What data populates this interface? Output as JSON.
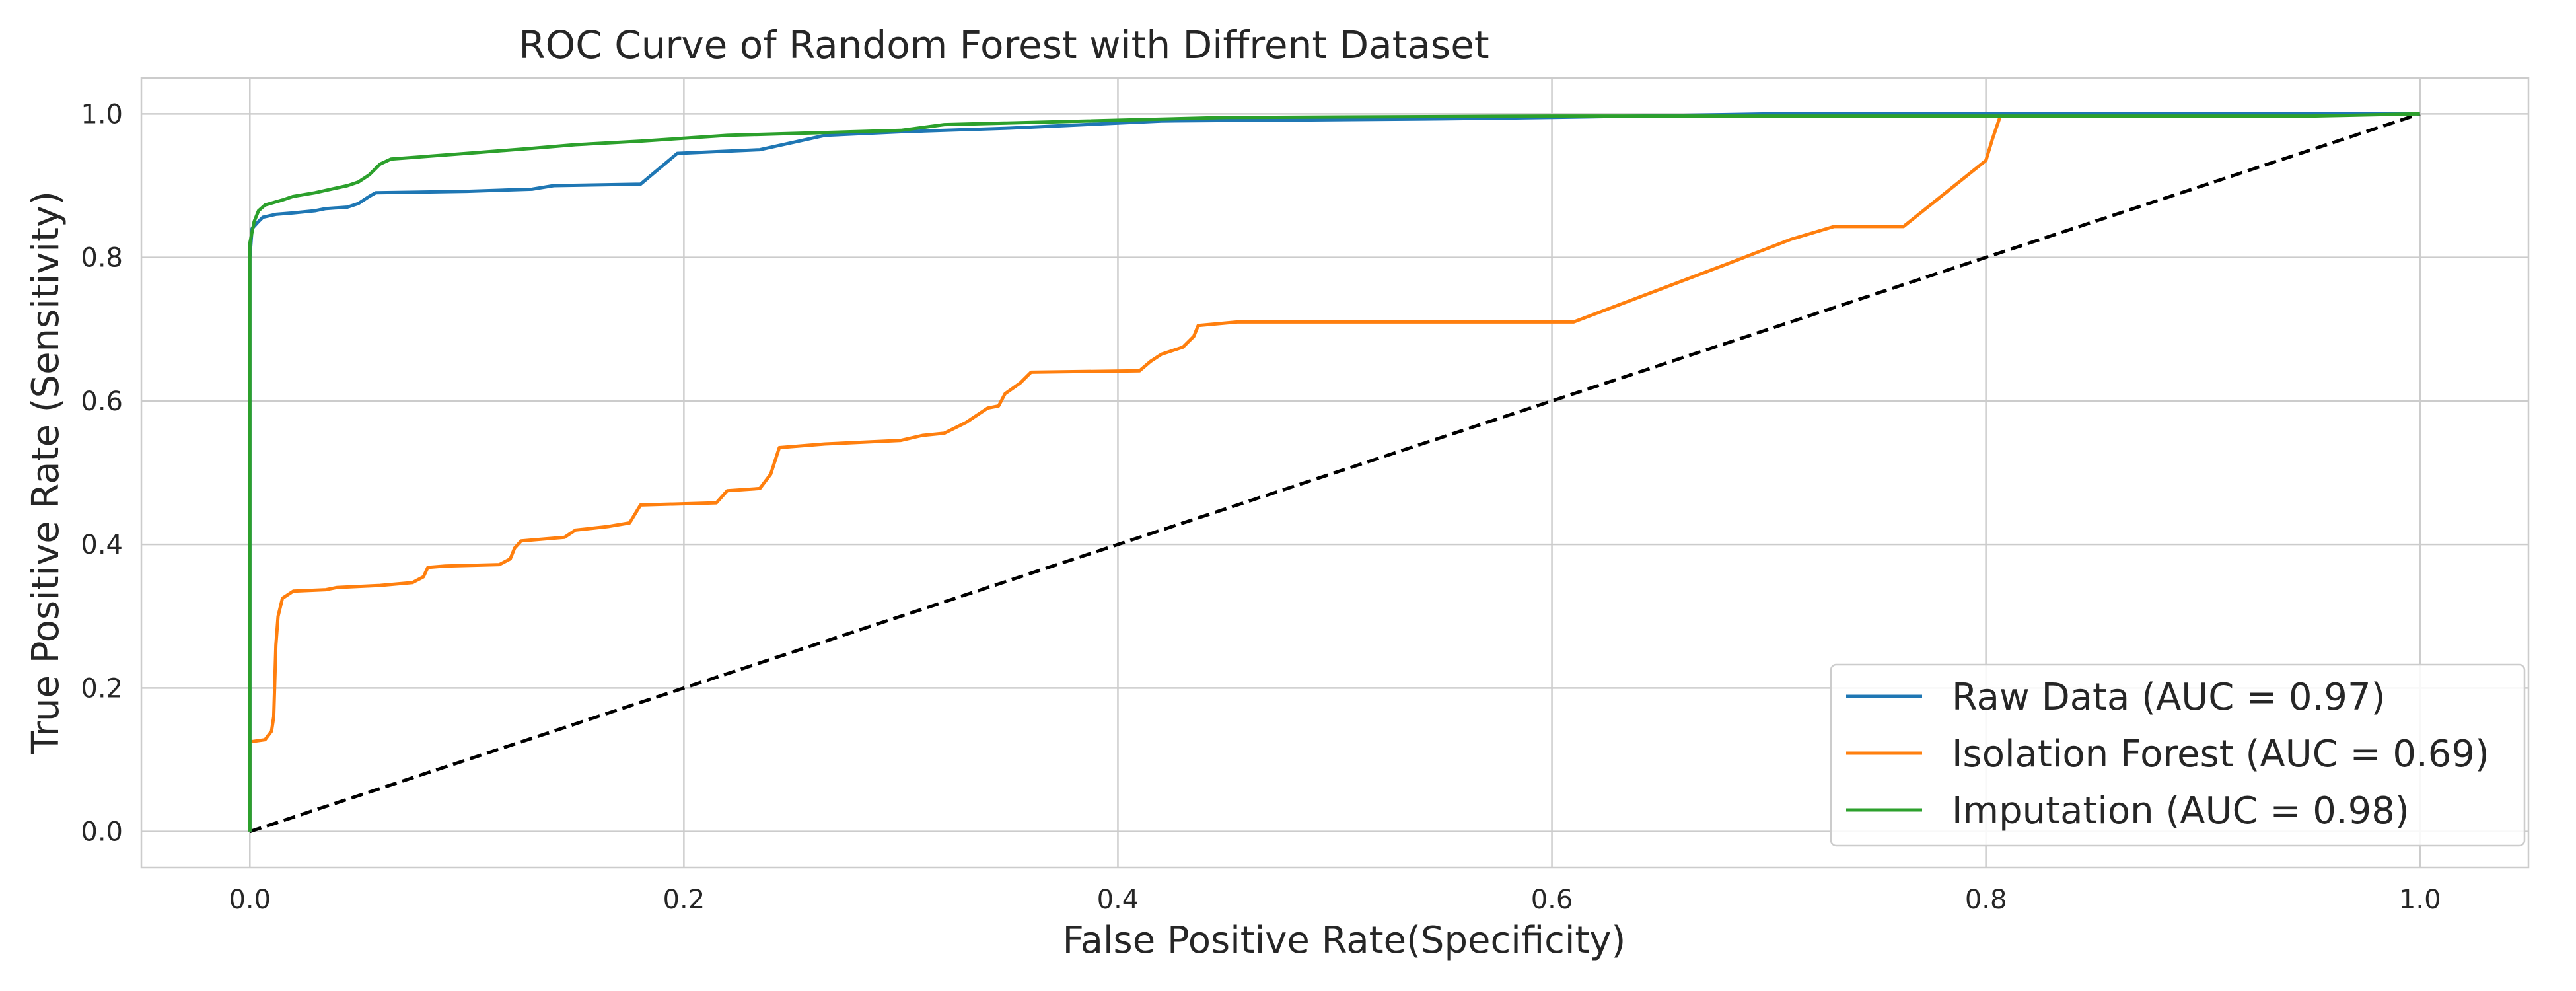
{
  "chart_data": {
    "type": "line",
    "title": "ROC Curve of Random Forest with Diffrent Dataset",
    "xlabel": "False Positive Rate(Specificity)",
    "ylabel": "True Positive Rate (Sensitivity)",
    "xlim": [
      -0.05,
      1.05
    ],
    "ylim": [
      -0.05,
      1.05
    ],
    "xticks": [
      0.0,
      0.2,
      0.4,
      0.6,
      0.8,
      1.0
    ],
    "yticks": [
      0.0,
      0.2,
      0.4,
      0.6,
      0.8,
      1.0
    ],
    "tick_labels": [
      "0.0",
      "0.2",
      "0.4",
      "0.6",
      "0.8",
      "1.0"
    ],
    "grid": true,
    "legend_position": "lower-right",
    "series": [
      {
        "name": "Raw Data (AUC = 0.97)",
        "color": "#1f77b4",
        "points": [
          [
            0.0,
            0.0
          ],
          [
            0.0,
            0.8
          ],
          [
            0.001,
            0.84
          ],
          [
            0.004,
            0.85
          ],
          [
            0.006,
            0.856
          ],
          [
            0.012,
            0.86
          ],
          [
            0.02,
            0.862
          ],
          [
            0.03,
            0.865
          ],
          [
            0.035,
            0.868
          ],
          [
            0.045,
            0.87
          ],
          [
            0.05,
            0.875
          ],
          [
            0.055,
            0.885
          ],
          [
            0.058,
            0.89
          ],
          [
            0.1,
            0.892
          ],
          [
            0.13,
            0.895
          ],
          [
            0.14,
            0.9
          ],
          [
            0.18,
            0.902
          ],
          [
            0.197,
            0.945
          ],
          [
            0.235,
            0.95
          ],
          [
            0.265,
            0.97
          ],
          [
            0.3,
            0.975
          ],
          [
            0.35,
            0.98
          ],
          [
            0.42,
            0.99
          ],
          [
            0.55,
            0.993
          ],
          [
            0.6,
            0.995
          ],
          [
            0.7,
            1.0
          ],
          [
            0.8,
            1.0
          ],
          [
            1.0,
            1.0
          ]
        ]
      },
      {
        "name": "Isolation Forest (AUC = 0.69)",
        "color": "#ff7f0e",
        "points": [
          [
            0.0,
            0.0
          ],
          [
            0.0,
            0.125
          ],
          [
            0.007,
            0.128
          ],
          [
            0.01,
            0.14
          ],
          [
            0.011,
            0.16
          ],
          [
            0.012,
            0.26
          ],
          [
            0.013,
            0.3
          ],
          [
            0.015,
            0.325
          ],
          [
            0.02,
            0.335
          ],
          [
            0.035,
            0.337
          ],
          [
            0.04,
            0.34
          ],
          [
            0.06,
            0.343
          ],
          [
            0.075,
            0.347
          ],
          [
            0.08,
            0.355
          ],
          [
            0.082,
            0.368
          ],
          [
            0.09,
            0.37
          ],
          [
            0.115,
            0.372
          ],
          [
            0.12,
            0.38
          ],
          [
            0.122,
            0.395
          ],
          [
            0.125,
            0.405
          ],
          [
            0.145,
            0.41
          ],
          [
            0.15,
            0.42
          ],
          [
            0.165,
            0.425
          ],
          [
            0.175,
            0.43
          ],
          [
            0.18,
            0.455
          ],
          [
            0.215,
            0.458
          ],
          [
            0.22,
            0.475
          ],
          [
            0.235,
            0.478
          ],
          [
            0.24,
            0.498
          ],
          [
            0.244,
            0.535
          ],
          [
            0.265,
            0.54
          ],
          [
            0.3,
            0.545
          ],
          [
            0.31,
            0.552
          ],
          [
            0.32,
            0.555
          ],
          [
            0.33,
            0.57
          ],
          [
            0.34,
            0.59
          ],
          [
            0.345,
            0.593
          ],
          [
            0.348,
            0.61
          ],
          [
            0.355,
            0.625
          ],
          [
            0.36,
            0.64
          ],
          [
            0.41,
            0.642
          ],
          [
            0.415,
            0.655
          ],
          [
            0.42,
            0.665
          ],
          [
            0.43,
            0.675
          ],
          [
            0.435,
            0.69
          ],
          [
            0.437,
            0.705
          ],
          [
            0.455,
            0.71
          ],
          [
            0.61,
            0.71
          ],
          [
            0.68,
            0.79
          ],
          [
            0.71,
            0.825
          ],
          [
            0.73,
            0.843
          ],
          [
            0.762,
            0.843
          ],
          [
            0.8,
            0.935
          ],
          [
            0.803,
            0.965
          ],
          [
            0.807,
            1.0
          ],
          [
            1.0,
            1.0
          ]
        ]
      },
      {
        "name": "Imputation (AUC = 0.98)",
        "color": "#2ca02c",
        "points": [
          [
            0.0,
            0.0
          ],
          [
            0.0,
            0.82
          ],
          [
            0.002,
            0.85
          ],
          [
            0.004,
            0.865
          ],
          [
            0.007,
            0.873
          ],
          [
            0.015,
            0.88
          ],
          [
            0.02,
            0.885
          ],
          [
            0.03,
            0.89
          ],
          [
            0.045,
            0.9
          ],
          [
            0.05,
            0.905
          ],
          [
            0.055,
            0.915
          ],
          [
            0.06,
            0.93
          ],
          [
            0.065,
            0.937
          ],
          [
            0.1,
            0.945
          ],
          [
            0.13,
            0.952
          ],
          [
            0.15,
            0.957
          ],
          [
            0.18,
            0.962
          ],
          [
            0.22,
            0.97
          ],
          [
            0.3,
            0.977
          ],
          [
            0.32,
            0.985
          ],
          [
            0.45,
            0.995
          ],
          [
            0.6,
            0.997
          ],
          [
            0.95,
            0.997
          ],
          [
            1.0,
            1.0
          ]
        ]
      }
    ],
    "reference_line": {
      "color": "#000000",
      "style": "dashed",
      "points": [
        [
          0.0,
          0.0
        ],
        [
          1.0,
          1.0
        ]
      ]
    }
  }
}
